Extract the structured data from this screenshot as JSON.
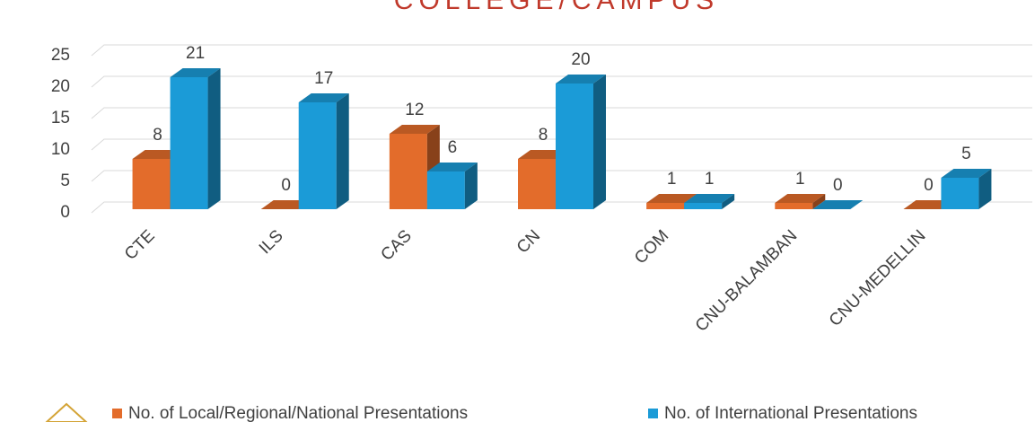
{
  "chart_data": {
    "type": "bar3d",
    "title": "COLLEGE/CAMPUS",
    "categories": [
      "CTE",
      "ILS",
      "CAS",
      "CN",
      "COM",
      "CNU-BALAMBAN",
      "CNU-MEDELLIN"
    ],
    "series": [
      {
        "name": "No. of Local/Regional/National Presentations",
        "color": "#e36c2b",
        "values": [
          8,
          0,
          12,
          8,
          1,
          1,
          0
        ]
      },
      {
        "name": "No. of International Presentations",
        "color": "#1b9bd7",
        "values": [
          21,
          17,
          6,
          20,
          1,
          0,
          5
        ]
      }
    ],
    "ylim": [
      0,
      25
    ],
    "yticks": [
      0,
      5,
      10,
      15,
      20,
      25
    ],
    "grid": true
  }
}
